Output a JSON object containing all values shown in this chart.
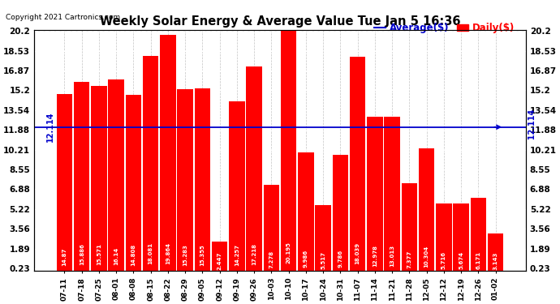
{
  "title": "Weekly Solar Energy & Average Value Tue Jan 5 16:36",
  "copyright": "Copyright 2021 Cartronics.com",
  "legend_avg": "Average($)",
  "legend_daily": "Daily($)",
  "average_value": 12.114,
  "average_label": "12.114",
  "categories": [
    "07-11",
    "07-18",
    "07-25",
    "08-01",
    "08-08",
    "08-15",
    "08-22",
    "08-29",
    "09-05",
    "09-12",
    "09-19",
    "09-26",
    "10-03",
    "10-10",
    "10-17",
    "10-24",
    "10-31",
    "11-07",
    "11-14",
    "11-21",
    "11-28",
    "12-05",
    "12-12",
    "12-19",
    "12-26",
    "01-02"
  ],
  "values": [
    14.87,
    15.886,
    15.571,
    16.14,
    14.808,
    18.081,
    19.864,
    15.283,
    15.355,
    2.447,
    14.257,
    17.218,
    7.278,
    20.195,
    9.986,
    5.517,
    9.786,
    18.039,
    12.978,
    13.013,
    7.377,
    10.304,
    5.716,
    5.674,
    6.171,
    3.143
  ],
  "bar_color": "#ff0000",
  "avg_line_color": "#0000cc",
  "grid_color": "#888888",
  "background_color": "#ffffff",
  "plot_bg_color": "#ffffff",
  "title_color": "#000000",
  "copyright_color": "#000000",
  "bar_label_color": "#ffffff",
  "yticks": [
    0.23,
    1.89,
    3.56,
    5.22,
    6.88,
    8.55,
    10.21,
    11.88,
    13.54,
    15.2,
    16.87,
    18.53,
    20.2
  ],
  "ymin": 0.0,
  "ymax": 20.2,
  "bar_label_fontsize": 5.0,
  "tick_fontsize": 7.5,
  "title_fontsize": 10.5,
  "copyright_fontsize": 6.5,
  "legend_fontsize": 8.5
}
